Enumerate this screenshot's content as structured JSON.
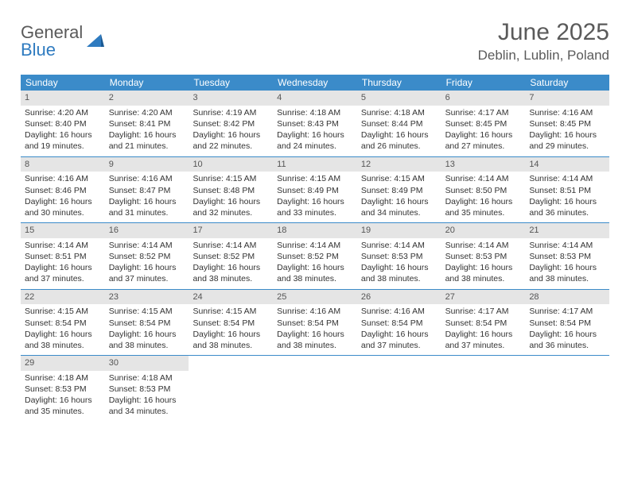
{
  "logo": {
    "line1": "General",
    "line2": "Blue"
  },
  "title": "June 2025",
  "location": "Deblin, Lublin, Poland",
  "colors": {
    "header_bg": "#3b8bc9",
    "header_text": "#ffffff",
    "daynum_bg": "#e5e5e5",
    "text": "#333333",
    "logo_gray": "#5a5a5a",
    "logo_blue": "#2f7bc0",
    "border": "#3b8bc9"
  },
  "weekdays": [
    "Sunday",
    "Monday",
    "Tuesday",
    "Wednesday",
    "Thursday",
    "Friday",
    "Saturday"
  ],
  "weeks": [
    [
      {
        "d": "1",
        "sr": "Sunrise: 4:20 AM",
        "ss": "Sunset: 8:40 PM",
        "dl": "Daylight: 16 hours and 19 minutes."
      },
      {
        "d": "2",
        "sr": "Sunrise: 4:20 AM",
        "ss": "Sunset: 8:41 PM",
        "dl": "Daylight: 16 hours and 21 minutes."
      },
      {
        "d": "3",
        "sr": "Sunrise: 4:19 AM",
        "ss": "Sunset: 8:42 PM",
        "dl": "Daylight: 16 hours and 22 minutes."
      },
      {
        "d": "4",
        "sr": "Sunrise: 4:18 AM",
        "ss": "Sunset: 8:43 PM",
        "dl": "Daylight: 16 hours and 24 minutes."
      },
      {
        "d": "5",
        "sr": "Sunrise: 4:18 AM",
        "ss": "Sunset: 8:44 PM",
        "dl": "Daylight: 16 hours and 26 minutes."
      },
      {
        "d": "6",
        "sr": "Sunrise: 4:17 AM",
        "ss": "Sunset: 8:45 PM",
        "dl": "Daylight: 16 hours and 27 minutes."
      },
      {
        "d": "7",
        "sr": "Sunrise: 4:16 AM",
        "ss": "Sunset: 8:45 PM",
        "dl": "Daylight: 16 hours and 29 minutes."
      }
    ],
    [
      {
        "d": "8",
        "sr": "Sunrise: 4:16 AM",
        "ss": "Sunset: 8:46 PM",
        "dl": "Daylight: 16 hours and 30 minutes."
      },
      {
        "d": "9",
        "sr": "Sunrise: 4:16 AM",
        "ss": "Sunset: 8:47 PM",
        "dl": "Daylight: 16 hours and 31 minutes."
      },
      {
        "d": "10",
        "sr": "Sunrise: 4:15 AM",
        "ss": "Sunset: 8:48 PM",
        "dl": "Daylight: 16 hours and 32 minutes."
      },
      {
        "d": "11",
        "sr": "Sunrise: 4:15 AM",
        "ss": "Sunset: 8:49 PM",
        "dl": "Daylight: 16 hours and 33 minutes."
      },
      {
        "d": "12",
        "sr": "Sunrise: 4:15 AM",
        "ss": "Sunset: 8:49 PM",
        "dl": "Daylight: 16 hours and 34 minutes."
      },
      {
        "d": "13",
        "sr": "Sunrise: 4:14 AM",
        "ss": "Sunset: 8:50 PM",
        "dl": "Daylight: 16 hours and 35 minutes."
      },
      {
        "d": "14",
        "sr": "Sunrise: 4:14 AM",
        "ss": "Sunset: 8:51 PM",
        "dl": "Daylight: 16 hours and 36 minutes."
      }
    ],
    [
      {
        "d": "15",
        "sr": "Sunrise: 4:14 AM",
        "ss": "Sunset: 8:51 PM",
        "dl": "Daylight: 16 hours and 37 minutes."
      },
      {
        "d": "16",
        "sr": "Sunrise: 4:14 AM",
        "ss": "Sunset: 8:52 PM",
        "dl": "Daylight: 16 hours and 37 minutes."
      },
      {
        "d": "17",
        "sr": "Sunrise: 4:14 AM",
        "ss": "Sunset: 8:52 PM",
        "dl": "Daylight: 16 hours and 38 minutes."
      },
      {
        "d": "18",
        "sr": "Sunrise: 4:14 AM",
        "ss": "Sunset: 8:52 PM",
        "dl": "Daylight: 16 hours and 38 minutes."
      },
      {
        "d": "19",
        "sr": "Sunrise: 4:14 AM",
        "ss": "Sunset: 8:53 PM",
        "dl": "Daylight: 16 hours and 38 minutes."
      },
      {
        "d": "20",
        "sr": "Sunrise: 4:14 AM",
        "ss": "Sunset: 8:53 PM",
        "dl": "Daylight: 16 hours and 38 minutes."
      },
      {
        "d": "21",
        "sr": "Sunrise: 4:14 AM",
        "ss": "Sunset: 8:53 PM",
        "dl": "Daylight: 16 hours and 38 minutes."
      }
    ],
    [
      {
        "d": "22",
        "sr": "Sunrise: 4:15 AM",
        "ss": "Sunset: 8:54 PM",
        "dl": "Daylight: 16 hours and 38 minutes."
      },
      {
        "d": "23",
        "sr": "Sunrise: 4:15 AM",
        "ss": "Sunset: 8:54 PM",
        "dl": "Daylight: 16 hours and 38 minutes."
      },
      {
        "d": "24",
        "sr": "Sunrise: 4:15 AM",
        "ss": "Sunset: 8:54 PM",
        "dl": "Daylight: 16 hours and 38 minutes."
      },
      {
        "d": "25",
        "sr": "Sunrise: 4:16 AM",
        "ss": "Sunset: 8:54 PM",
        "dl": "Daylight: 16 hours and 38 minutes."
      },
      {
        "d": "26",
        "sr": "Sunrise: 4:16 AM",
        "ss": "Sunset: 8:54 PM",
        "dl": "Daylight: 16 hours and 37 minutes."
      },
      {
        "d": "27",
        "sr": "Sunrise: 4:17 AM",
        "ss": "Sunset: 8:54 PM",
        "dl": "Daylight: 16 hours and 37 minutes."
      },
      {
        "d": "28",
        "sr": "Sunrise: 4:17 AM",
        "ss": "Sunset: 8:54 PM",
        "dl": "Daylight: 16 hours and 36 minutes."
      }
    ],
    [
      {
        "d": "29",
        "sr": "Sunrise: 4:18 AM",
        "ss": "Sunset: 8:53 PM",
        "dl": "Daylight: 16 hours and 35 minutes."
      },
      {
        "d": "30",
        "sr": "Sunrise: 4:18 AM",
        "ss": "Sunset: 8:53 PM",
        "dl": "Daylight: 16 hours and 34 minutes."
      },
      null,
      null,
      null,
      null,
      null
    ]
  ]
}
